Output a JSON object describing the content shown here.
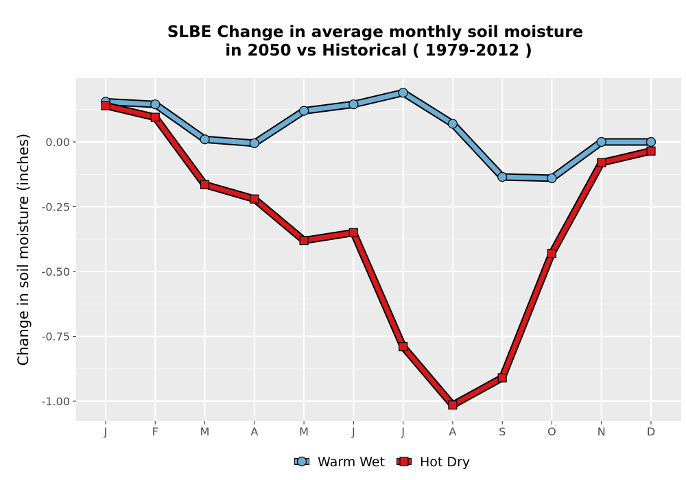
{
  "chart_data": {
    "type": "line",
    "title_line1": "SLBE  Change in average monthly soil moisture",
    "title_line2": "in 2050 vs Historical ( 1979-2012 )",
    "xlabel": "",
    "ylabel": "Change in soil moisture (inches)",
    "categories": [
      "J",
      "F",
      "M",
      "A",
      "M",
      "J",
      "J",
      "A",
      "S",
      "O",
      "N",
      "D"
    ],
    "y_ticks": [
      0.0,
      -0.25,
      -0.5,
      -0.75,
      -1.0
    ],
    "y_tick_labels": [
      "0.00",
      "-0.25",
      "-0.50",
      "-0.75",
      "-1.00"
    ],
    "ylim": [
      -1.08,
      0.25
    ],
    "grid": true,
    "legend_position": "bottom",
    "series": [
      {
        "name": "Warm Wet",
        "marker": "circle",
        "color": "#6baed6",
        "values": [
          0.155,
          0.145,
          0.01,
          -0.005,
          0.12,
          0.145,
          0.19,
          0.07,
          -0.135,
          -0.14,
          0.0,
          0.0
        ]
      },
      {
        "name": "Hot Dry",
        "marker": "square",
        "color": "#d7191c",
        "values": [
          0.14,
          0.095,
          -0.165,
          -0.22,
          -0.38,
          -0.35,
          -0.79,
          -1.015,
          -0.91,
          -0.43,
          -0.08,
          -0.035
        ]
      }
    ]
  }
}
